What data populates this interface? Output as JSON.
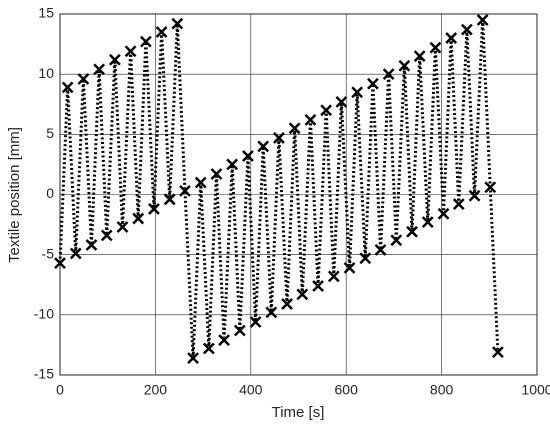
{
  "chart_data": {
    "type": "line",
    "xlabel": "Time [s]",
    "ylabel": "Textile position [mm]",
    "x": [
      0,
      16,
      33,
      49,
      66,
      82,
      98,
      115,
      131,
      148,
      164,
      180,
      197,
      213,
      230,
      246,
      262,
      279,
      295,
      312,
      328,
      344,
      361,
      377,
      394,
      410,
      426,
      443,
      459,
      476,
      492,
      508,
      525,
      541,
      558,
      574,
      590,
      607,
      623,
      640,
      656,
      672,
      689,
      705,
      722,
      738,
      754,
      771,
      787,
      804,
      820,
      836,
      853,
      869,
      886,
      902,
      918
    ],
    "series": [
      {
        "color": "#000000",
        "values": [
          -5.7,
          8.9,
          -4.9,
          9.6,
          -4.2,
          10.4,
          -3.4,
          11.2,
          -2.7,
          11.9,
          -2.0,
          12.7,
          -1.2,
          13.5,
          -0.4,
          14.2,
          0.3,
          -13.6,
          1.0,
          -12.8,
          1.7,
          -12.1,
          2.5,
          -11.3,
          3.2,
          -10.6,
          4.0,
          -9.8,
          4.7,
          -9.1,
          5.5,
          -8.3,
          6.2,
          -7.6,
          7.0,
          -6.8,
          7.7,
          -6.1,
          8.5,
          -5.3,
          9.2,
          -4.6,
          10.0,
          -3.8,
          10.7,
          -3.1,
          11.5,
          -2.3,
          12.2,
          -1.6,
          13.0,
          -0.8,
          13.7,
          -0.1,
          14.5,
          0.6,
          -13.1
        ]
      }
    ],
    "xlim": [
      0,
      1000
    ],
    "xticks": [
      0,
      200,
      400,
      600,
      800,
      1000
    ],
    "ylim": [
      -15,
      15
    ],
    "yticks": [
      -15,
      -10,
      -5,
      0,
      5,
      10,
      15
    ],
    "grid": true
  }
}
